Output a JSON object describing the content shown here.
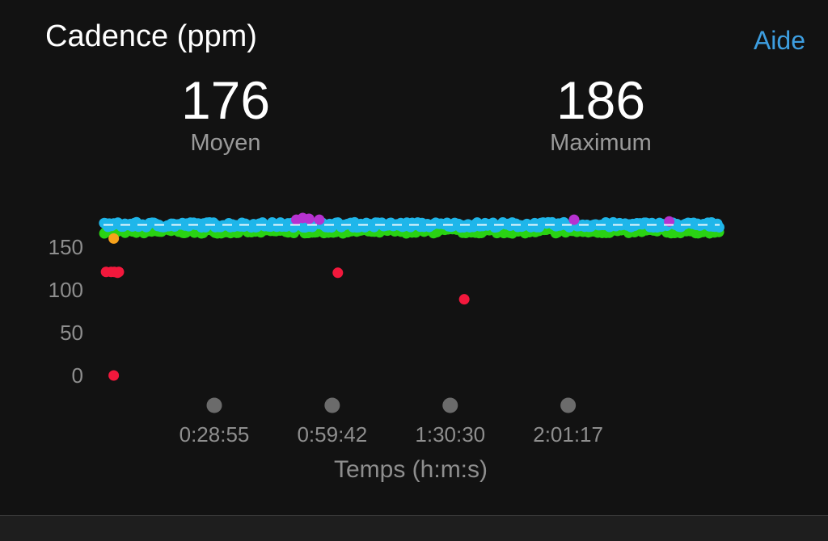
{
  "header": {
    "title": "Cadence (ppm)",
    "help_label": "Aide"
  },
  "stats": {
    "average": {
      "value": "176",
      "label": "Moyen"
    },
    "maximum": {
      "value": "186",
      "label": "Maximum"
    }
  },
  "colors": {
    "background": "#121212",
    "accent": "#3d9ee0",
    "zone_blue": "#1fb6ea",
    "zone_green": "#2ad214",
    "zone_purple": "#b632d0",
    "zone_orange": "#f7a21b",
    "zone_red": "#f2183c",
    "average_line": "#ffffff"
  },
  "chart_data": {
    "type": "scatter",
    "title": "Cadence (ppm)",
    "xlabel": "Temps (h:m:s)",
    "ylabel": "",
    "y_ticks": [
      0,
      50,
      100,
      150
    ],
    "x_ticks": [
      "0:28:55",
      "0:59:42",
      "1:30:30",
      "2:01:17"
    ],
    "x_tick_seconds": [
      1735,
      3582,
      5430,
      7277
    ],
    "xlim_seconds": [
      0,
      9650
    ],
    "ylim": [
      0,
      186
    ],
    "grid": false,
    "average": 176,
    "series": [
      {
        "color": "#f2183c",
        "points": [
          [
            40,
            121
          ],
          [
            120,
            121
          ],
          [
            170,
            121
          ],
          [
            220,
            120
          ],
          [
            240,
            121
          ],
          [
            160,
            0
          ],
          [
            3670,
            120
          ],
          [
            5650,
            89
          ]
        ]
      },
      {
        "color": "#f7a21b",
        "points": [
          [
            160,
            160
          ]
        ]
      },
      {
        "color": "#b632d0",
        "points": [
          [
            3020,
            182
          ],
          [
            3120,
            184
          ],
          [
            3220,
            183
          ],
          [
            3380,
            182
          ],
          [
            7370,
            182
          ],
          [
            8860,
            180
          ]
        ]
      },
      {
        "color": "#2ad214",
        "band": [
          166,
          172
        ]
      },
      {
        "color": "#1fb6ea",
        "band": [
          173,
          179
        ]
      }
    ]
  },
  "x_markers": [
    {
      "name": "marker-1"
    },
    {
      "name": "marker-2"
    },
    {
      "name": "marker-3"
    },
    {
      "name": "marker-4"
    }
  ]
}
